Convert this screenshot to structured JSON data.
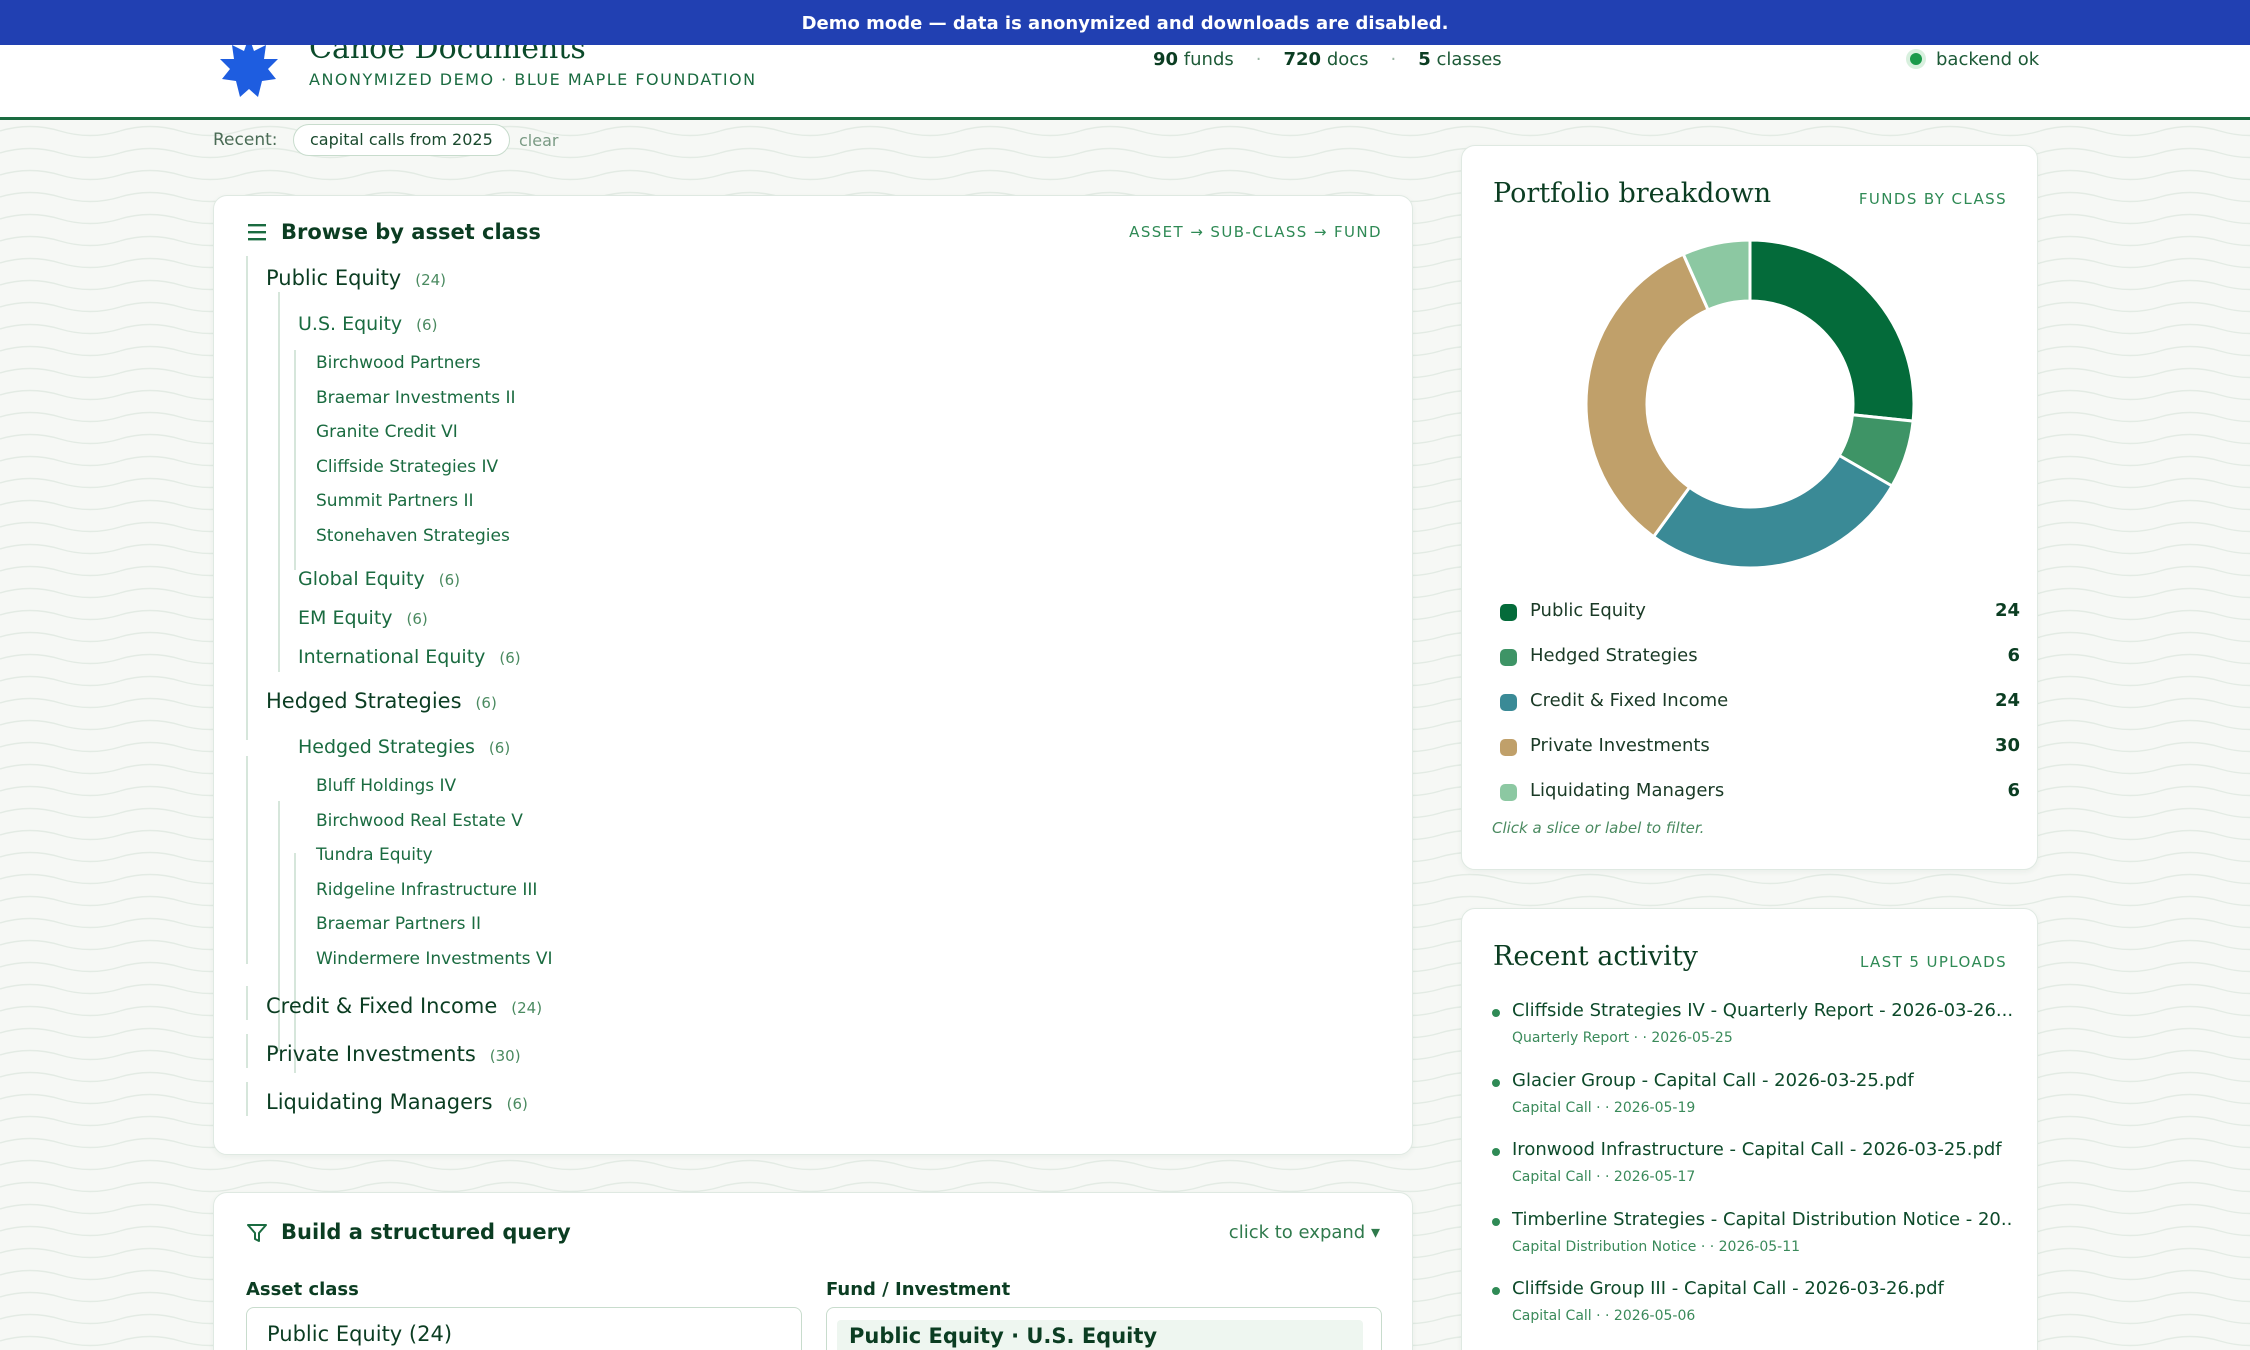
{
  "banner": {
    "text": "Demo mode — data is anonymized and downloads are disabled."
  },
  "header": {
    "title": "Canoe Documents",
    "subtitle": "ANONYMIZED DEMO · BLUE MAPLE FOUNDATION",
    "stats": [
      {
        "value": "90",
        "label": "funds"
      },
      {
        "value": "720",
        "label": "docs"
      },
      {
        "value": "5",
        "label": "classes"
      }
    ],
    "stat_sep": "·",
    "status": "backend ok"
  },
  "recent": {
    "label": "Recent:",
    "chip": "capital calls from 2025",
    "clear": "clear"
  },
  "browse": {
    "title": "Browse by asset class",
    "kicker": "ASSET → SUB-CLASS → FUND",
    "menu_icon": "hamburger-icon",
    "tree": [
      {
        "label": "Public Equity",
        "count": "(24)"
      },
      {
        "label": "U.S. Equity",
        "count": "(6)"
      },
      {
        "label": "Birchwood Partners"
      },
      {
        "label": "Braemar Investments II"
      },
      {
        "label": "Granite Credit VI"
      },
      {
        "label": "Cliffside Strategies IV"
      },
      {
        "label": "Summit Partners II"
      },
      {
        "label": "Stonehaven Strategies"
      },
      {
        "label": "Global Equity",
        "count": "(6)"
      },
      {
        "label": "EM Equity",
        "count": "(6)"
      },
      {
        "label": "International Equity",
        "count": "(6)"
      },
      {
        "label": "Hedged Strategies",
        "count": "(6)"
      },
      {
        "label": "Hedged Strategies",
        "count": "(6)"
      },
      {
        "label": "Bluff Holdings IV"
      },
      {
        "label": "Birchwood Real Estate V"
      },
      {
        "label": "Tundra Equity"
      },
      {
        "label": "Ridgeline Infrastructure III"
      },
      {
        "label": "Braemar Partners II"
      },
      {
        "label": "Windermere Investments VI"
      },
      {
        "label": "Credit & Fixed Income",
        "count": "(24)"
      },
      {
        "label": "Private Investments",
        "count": "(30)"
      },
      {
        "label": "Liquidating Managers",
        "count": "(6)"
      }
    ]
  },
  "breakdown": {
    "title": "Portfolio breakdown",
    "kicker": "FUNDS BY CLASS",
    "hint": "Click a slice or label to filter.",
    "legend": [
      {
        "label": "Public Equity",
        "value": "24"
      },
      {
        "label": "Hedged Strategies",
        "value": "6"
      },
      {
        "label": "Credit & Fixed Income",
        "value": "24"
      },
      {
        "label": "Private Investments",
        "value": "30"
      },
      {
        "label": "Liquidating Managers",
        "value": "6"
      }
    ]
  },
  "chart_data": {
    "type": "pie",
    "categories": [
      "Public Equity",
      "Hedged Strategies",
      "Credit & Fixed Income",
      "Private Investments",
      "Liquidating Managers"
    ],
    "values": [
      24,
      6,
      24,
      30,
      6
    ],
    "colors": [
      "#046b3a",
      "#3e9466",
      "#3a8a96",
      "#c0a06a",
      "#8cc8a2"
    ],
    "title": "Portfolio breakdown",
    "donut": true,
    "legend": "bottom"
  },
  "activity": {
    "title": "Recent activity",
    "kicker": "LAST 5 UPLOADS",
    "items": [
      {
        "name": "Cliffside Strategies IV - Quarterly Report - 2026-03-26...",
        "meta": "Quarterly Report · · 2026-05-25"
      },
      {
        "name": "Glacier Group - Capital Call - 2026-03-25.pdf",
        "meta": "Capital Call · · 2026-05-19"
      },
      {
        "name": "Ironwood Infrastructure - Capital Call - 2026-03-25.pdf",
        "meta": "Capital Call · · 2026-05-17"
      },
      {
        "name": "Timberline Strategies - Capital Distribution Notice - 20...",
        "meta": "Capital Distribution Notice · · 2026-05-11"
      },
      {
        "name": "Cliffside Group III - Capital Call - 2026-03-26.pdf",
        "meta": "Capital Call · · 2026-05-06"
      }
    ]
  },
  "query": {
    "title": "Build a structured query",
    "expand": "click to expand ▾",
    "asset_label": "Asset class",
    "asset_value": "Public Equity (24)",
    "fund_label": "Fund / Investment",
    "fund_value": "Public Equity · U.S. Equity"
  }
}
